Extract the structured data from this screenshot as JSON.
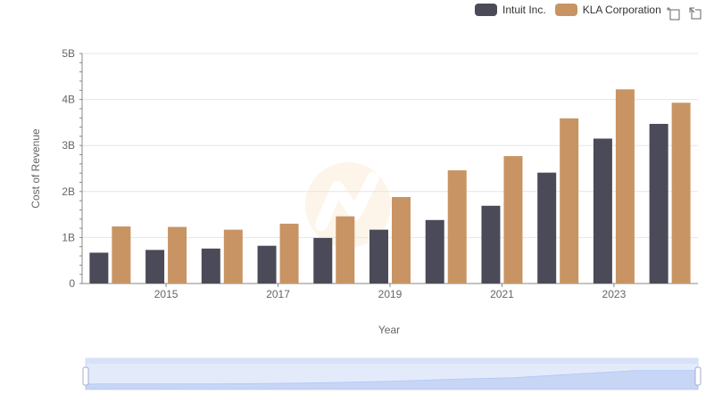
{
  "chart_data": {
    "type": "bar",
    "x": [
      2014,
      2015,
      2016,
      2017,
      2018,
      2019,
      2020,
      2021,
      2022,
      2023,
      2024
    ],
    "xticks": [
      "2015",
      "2017",
      "2019",
      "2021",
      "2023"
    ],
    "yticks": [
      "0",
      "1B",
      "2B",
      "3B",
      "4B",
      "5B"
    ],
    "ylim": [
      0,
      5000000000
    ],
    "xlabel": "Year",
    "ylabel": "Cost of Revenue",
    "legend_position": "top-right",
    "grid": true,
    "series": [
      {
        "name": "Intuit Inc.",
        "color": "#4a4a58",
        "values": [
          670000000,
          730000000,
          760000000,
          820000000,
          990000000,
          1170000000,
          1380000000,
          1690000000,
          2410000000,
          3150000000,
          3470000000
        ]
      },
      {
        "name": "KLA Corporation",
        "color": "#c89464",
        "values": [
          1240000000,
          1230000000,
          1170000000,
          1300000000,
          1460000000,
          1880000000,
          2460000000,
          2770000000,
          3590000000,
          4220000000,
          3930000000
        ]
      }
    ]
  },
  "toolbar": {
    "zoom_icon": "zoom-box-icon",
    "restore_icon": "restore-icon"
  }
}
